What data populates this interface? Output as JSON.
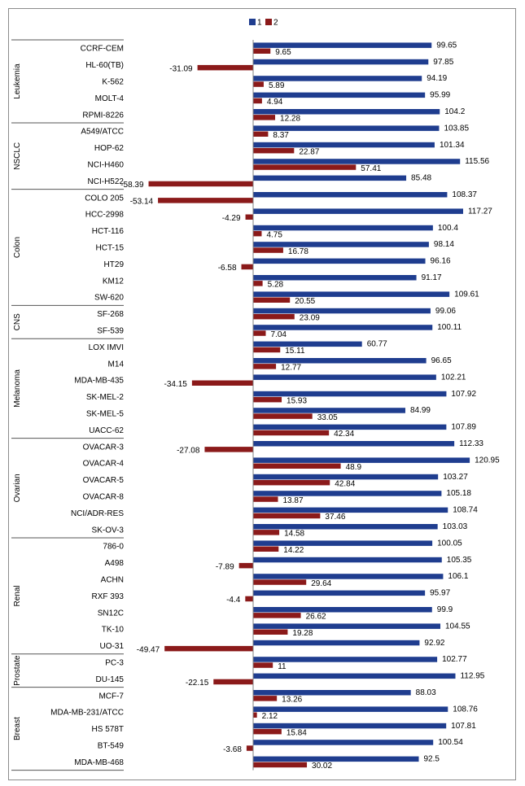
{
  "chart_data": {
    "type": "bar",
    "orientation": "horizontal",
    "title": "",
    "xlabel": "",
    "ylabel": "",
    "legend_position": "top-center",
    "grid": false,
    "series": [
      {
        "name": "1",
        "color": "#1f3d8f"
      },
      {
        "name": "2",
        "color": "#8b1a1a"
      }
    ],
    "groups": [
      {
        "name": "Leukemia",
        "rows": [
          {
            "label": "CCRF-CEM",
            "v1": 99.65,
            "v2": 9.65
          },
          {
            "label": "HL-60(TB)",
            "v1": 97.85,
            "v2": -31.09
          },
          {
            "label": "K-562",
            "v1": 94.19,
            "v2": 5.89
          },
          {
            "label": "MOLT-4",
            "v1": 95.99,
            "v2": 4.94
          },
          {
            "label": "RPMI-8226",
            "v1": 104.2,
            "v2": 12.28
          }
        ]
      },
      {
        "name": "NSCLC",
        "rows": [
          {
            "label": "A549/ATCC",
            "v1": 103.85,
            "v2": 8.37
          },
          {
            "label": "HOP-62",
            "v1": 101.34,
            "v2": 22.87
          },
          {
            "label": "NCI-H460",
            "v1": 115.56,
            "v2": 57.41
          },
          {
            "label": "NCI-H522",
            "v1": 85.48,
            "v2": -58.39
          }
        ]
      },
      {
        "name": "Colon",
        "rows": [
          {
            "label": "COLO 205",
            "v1": 108.37,
            "v2": -53.14
          },
          {
            "label": "HCC-2998",
            "v1": 117.27,
            "v2": -4.29
          },
          {
            "label": "HCT-116",
            "v1": 100.4,
            "v2": 4.75
          },
          {
            "label": "HCT-15",
            "v1": 98.14,
            "v2": 16.78
          },
          {
            "label": "HT29",
            "v1": 96.16,
            "v2": -6.58
          },
          {
            "label": "KM12",
            "v1": 91.17,
            "v2": 5.28
          },
          {
            "label": "SW-620",
            "v1": 109.61,
            "v2": 20.55
          }
        ]
      },
      {
        "name": "CNS",
        "rows": [
          {
            "label": "SF-268",
            "v1": 99.06,
            "v2": 23.09
          },
          {
            "label": "SF-539",
            "v1": 100.11,
            "v2": 7.04
          }
        ]
      },
      {
        "name": "Melanoma",
        "rows": [
          {
            "label": "LOX IMVI",
            "v1": 60.77,
            "v2": 15.11
          },
          {
            "label": "M14",
            "v1": 96.65,
            "v2": 12.77
          },
          {
            "label": "MDA-MB-435",
            "v1": 102.21,
            "v2": -34.15
          },
          {
            "label": "SK-MEL-2",
            "v1": 107.92,
            "v2": 15.93
          },
          {
            "label": "SK-MEL-5",
            "v1": 84.99,
            "v2": 33.05
          },
          {
            "label": "UACC-62",
            "v1": 107.89,
            "v2": 42.34
          }
        ]
      },
      {
        "name": "Ovarian",
        "rows": [
          {
            "label": "OVACAR-3",
            "v1": 112.33,
            "v2": -27.08
          },
          {
            "label": "OVACAR-4",
            "v1": 120.95,
            "v2": 48.9
          },
          {
            "label": "OVACAR-5",
            "v1": 103.27,
            "v2": 42.84
          },
          {
            "label": "OVACAR-8",
            "v1": 105.18,
            "v2": 13.87
          },
          {
            "label": "NCI/ADR-RES",
            "v1": 108.74,
            "v2": 37.46
          },
          {
            "label": "SK-OV-3",
            "v1": 103.03,
            "v2": 14.58
          }
        ]
      },
      {
        "name": "Renal",
        "rows": [
          {
            "label": "786-0",
            "v1": 100.05,
            "v2": 14.22
          },
          {
            "label": "A498",
            "v1": 105.35,
            "v2": -7.89
          },
          {
            "label": "ACHN",
            "v1": 106.1,
            "v2": 29.64
          },
          {
            "label": "RXF 393",
            "v1": 95.97,
            "v2": -4.4
          },
          {
            "label": "SN12C",
            "v1": 99.9,
            "v2": 26.62
          },
          {
            "label": "TK-10",
            "v1": 104.55,
            "v2": 19.28
          },
          {
            "label": "UO-31",
            "v1": 92.92,
            "v2": -49.47
          }
        ]
      },
      {
        "name": "Prostate",
        "rows": [
          {
            "label": "PC-3",
            "v1": 102.77,
            "v2": 11
          },
          {
            "label": "DU-145",
            "v1": 112.95,
            "v2": -22.15
          }
        ]
      },
      {
        "name": "Breast",
        "rows": [
          {
            "label": "MCF-7",
            "v1": 88.03,
            "v2": 13.26
          },
          {
            "label": "MDA-MB-231/ATCC",
            "v1": 108.76,
            "v2": 2.12
          },
          {
            "label": "HS 578T",
            "v1": 107.81,
            "v2": 15.84
          },
          {
            "label": "BT-549",
            "v1": 100.54,
            "v2": -3.68
          },
          {
            "label": "MDA-MB-468",
            "v1": 92.5,
            "v2": 30.02
          }
        ]
      }
    ]
  }
}
